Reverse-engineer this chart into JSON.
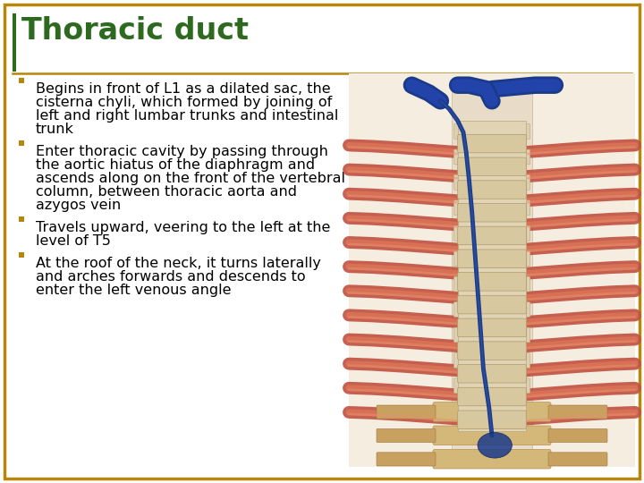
{
  "title": "Thoracic duct",
  "title_color": "#2d6a1f",
  "title_fontsize": 24,
  "background_color": "#ffffff",
  "border_color_outer": "#b8860b",
  "border_color_inner": "#2d6a1f",
  "bullet_color": "#b8860b",
  "bullet_points": [
    "Begins in front of L1 as a dilated sac, the\ncisterna chyli, which formed by joining of\nleft and right lumbar trunks and intestinal\ntrunk",
    "Enter thoracic cavity by passing through\nthe aortic hiatus of the diaphragm and\nascends along on the front of the vertebral\ncolumn, between thoracic aorta and\nazygos vein",
    "Travels upward, veering to the left at the\nlevel of T5",
    "At the roof of the neck, it turns laterally\nand arches forwards and descends to\nenter the left venous angle"
  ],
  "text_fontsize": 11.5,
  "text_color": "#000000",
  "title_bar_green_color": "#2d6a1f",
  "outer_border_thickness": 2.5,
  "inner_border_thickness": 2.0
}
